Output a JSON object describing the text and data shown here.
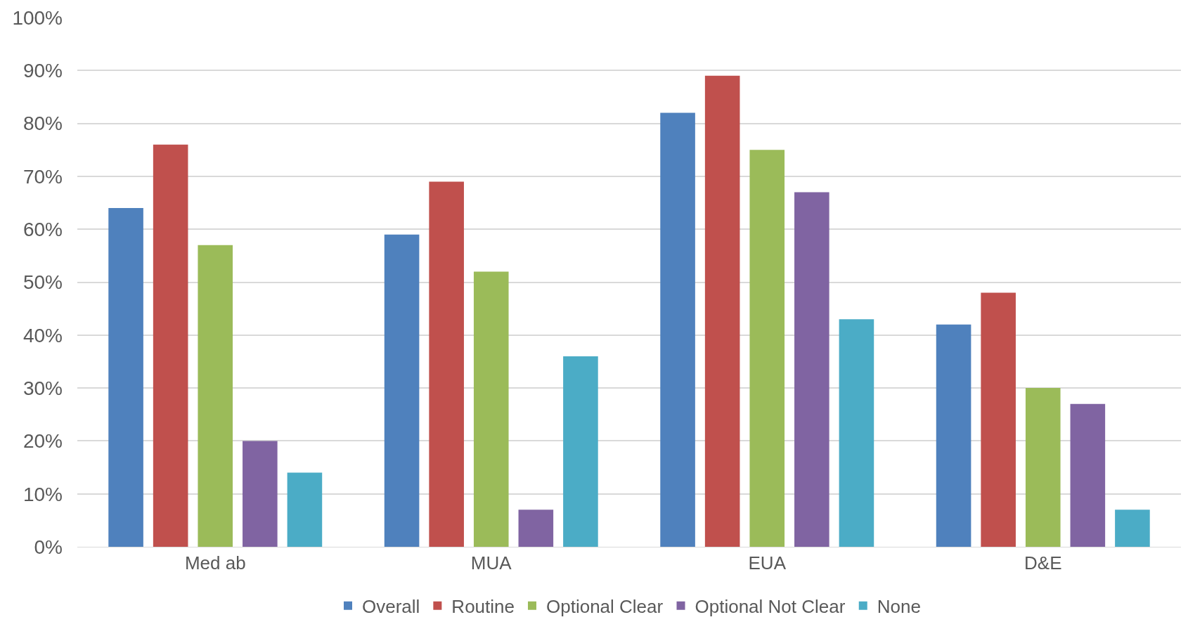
{
  "chart_data": {
    "type": "bar",
    "categories": [
      "Med ab",
      "MUA",
      "EUA",
      "D&E"
    ],
    "series": [
      {
        "name": "Overall",
        "color": "#4f81bd",
        "values": [
          64,
          59,
          82,
          42
        ]
      },
      {
        "name": "Routine",
        "color": "#c0504d",
        "values": [
          76,
          69,
          89,
          48
        ]
      },
      {
        "name": "Optional Clear",
        "color": "#9bbb59",
        "values": [
          57,
          52,
          75,
          30
        ]
      },
      {
        "name": "Optional Not Clear",
        "color": "#8064a2",
        "values": [
          20,
          7,
          67,
          27
        ]
      },
      {
        "name": "None",
        "color": "#4bacc6",
        "values": [
          14,
          36,
          43,
          7
        ]
      }
    ],
    "ylim": [
      0,
      100
    ],
    "yticks": [
      {
        "value": 0,
        "label": "0%"
      },
      {
        "value": 10,
        "label": "10%"
      },
      {
        "value": 20,
        "label": "20%"
      },
      {
        "value": 30,
        "label": "30%"
      },
      {
        "value": 40,
        "label": "40%"
      },
      {
        "value": 50,
        "label": "50%"
      },
      {
        "value": 60,
        "label": "60%"
      },
      {
        "value": 70,
        "label": "70%"
      },
      {
        "value": 80,
        "label": "80%"
      },
      {
        "value": 90,
        "label": "90%"
      },
      {
        "value": 100,
        "label": "100%"
      }
    ],
    "grid": "y",
    "legend": "bottom"
  }
}
